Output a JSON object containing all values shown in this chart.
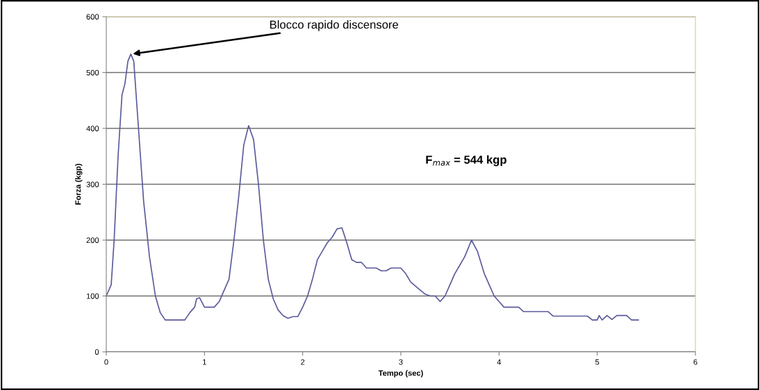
{
  "chart_data": {
    "type": "line",
    "xlabel": "Tempo (sec)",
    "ylabel": "Forza (kgp)",
    "xlim": [
      0,
      6
    ],
    "xticks": [
      0,
      1,
      2,
      3,
      4,
      5,
      6
    ],
    "ylim": [
      0,
      600
    ],
    "yticks": [
      0,
      100,
      200,
      300,
      400,
      500,
      600
    ],
    "grid": "y",
    "legend": false,
    "marker": "none",
    "line_style": "solid",
    "annotations": [
      {
        "text": "Blocco rapido discensore",
        "x": 0.25,
        "y": 533
      },
      "F$_{max}$ = 544 kgp"
    ],
    "series": [
      {
        "color": "#5a5a9c",
        "x": [
          0,
          0.05,
          0.08,
          0.12,
          0.16,
          0.19,
          0.22,
          0.25,
          0.28,
          0.32,
          0.38,
          0.44,
          0.5,
          0.55,
          0.6,
          0.8,
          0.85,
          0.9,
          0.92,
          0.95,
          1.0,
          1.1,
          1.15,
          1.2,
          1.25,
          1.3,
          1.35,
          1.4,
          1.45,
          1.5,
          1.55,
          1.6,
          1.65,
          1.7,
          1.75,
          1.8,
          1.85,
          1.9,
          1.95,
          2.0,
          2.05,
          2.1,
          2.15,
          2.2,
          2.25,
          2.3,
          2.35,
          2.4,
          2.45,
          2.5,
          2.55,
          2.6,
          2.65,
          2.75,
          2.8,
          2.85,
          2.9,
          3.0,
          3.05,
          3.1,
          3.2,
          3.25,
          3.3,
          3.35,
          3.4,
          3.45,
          3.5,
          3.55,
          3.6,
          3.65,
          3.72,
          3.78,
          3.85,
          3.9,
          3.95,
          4.0,
          4.05,
          4.2,
          4.25,
          4.5,
          4.55,
          4.9,
          4.95,
          5.0,
          5.02,
          5.05,
          5.1,
          5.15,
          5.2,
          5.3,
          5.35,
          5.42
        ],
        "values": [
          100,
          120,
          200,
          350,
          460,
          480,
          520,
          533,
          520,
          420,
          270,
          170,
          100,
          70,
          57,
          57,
          70,
          80,
          95,
          97,
          80,
          80,
          90,
          110,
          130,
          200,
          280,
          370,
          405,
          380,
          300,
          200,
          130,
          95,
          75,
          65,
          60,
          63,
          63,
          80,
          100,
          130,
          165,
          180,
          195,
          205,
          220,
          222,
          195,
          165,
          160,
          160,
          150,
          150,
          145,
          145,
          150,
          150,
          140,
          125,
          110,
          103,
          100,
          100,
          90,
          100,
          120,
          140,
          155,
          170,
          200,
          180,
          140,
          120,
          100,
          90,
          80,
          80,
          72,
          72,
          64,
          64,
          57,
          57,
          65,
          57,
          65,
          58,
          65,
          65,
          57,
          57
        ]
      }
    ]
  }
}
